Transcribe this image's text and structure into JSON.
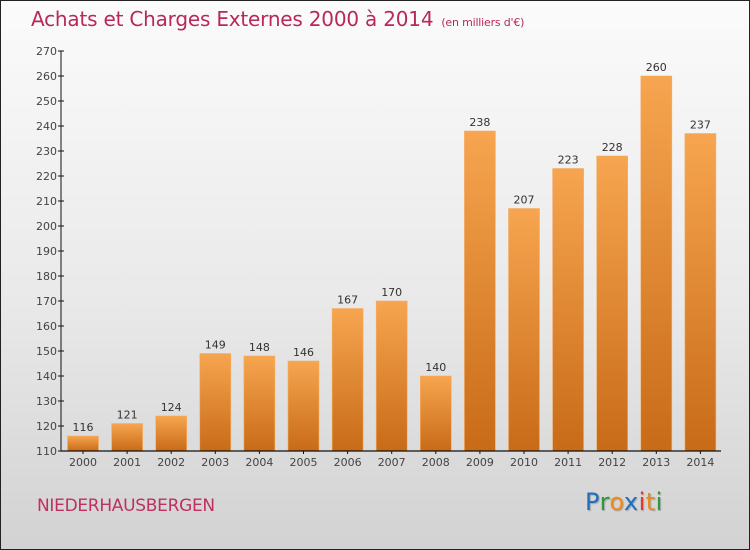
{
  "title": "Achats et Charges Externes 2000 à 2014",
  "unit_label": "(en milliers d'€)",
  "commune": "NIEDERHAUSBERGEN",
  "logo": {
    "letters": [
      {
        "char": "P",
        "color": "#1d6fc4"
      },
      {
        "char": "r",
        "color": "#2d9a3a"
      },
      {
        "char": "o",
        "color": "#f08a1c"
      },
      {
        "char": "x",
        "color": "#1d6fc4"
      },
      {
        "char": "i",
        "color": "#e03a2a"
      },
      {
        "char": "t",
        "color": "#f08a1c"
      },
      {
        "char": "i",
        "color": "#2d9a3a"
      }
    ]
  },
  "colors": {
    "title": "#b8285a",
    "bar_top": "#f7a550",
    "bar_bottom": "#c86b18",
    "axis": "#111111"
  },
  "chart_data": {
    "type": "bar",
    "title": "Achats et Charges Externes 2000 à 2014 (en milliers d'€)",
    "xlabel": "",
    "ylabel": "",
    "categories": [
      "2000",
      "2001",
      "2002",
      "2003",
      "2004",
      "2005",
      "2006",
      "2007",
      "2008",
      "2009",
      "2010",
      "2011",
      "2012",
      "2013",
      "2014"
    ],
    "values": [
      116,
      121,
      124,
      149,
      148,
      146,
      167,
      170,
      140,
      238,
      207,
      223,
      228,
      260,
      237
    ],
    "ylim": [
      110,
      270
    ],
    "yticks": [
      110,
      120,
      130,
      140,
      150,
      160,
      170,
      180,
      190,
      200,
      210,
      220,
      230,
      240,
      250,
      260,
      270
    ],
    "grid": false,
    "legend": "none"
  }
}
